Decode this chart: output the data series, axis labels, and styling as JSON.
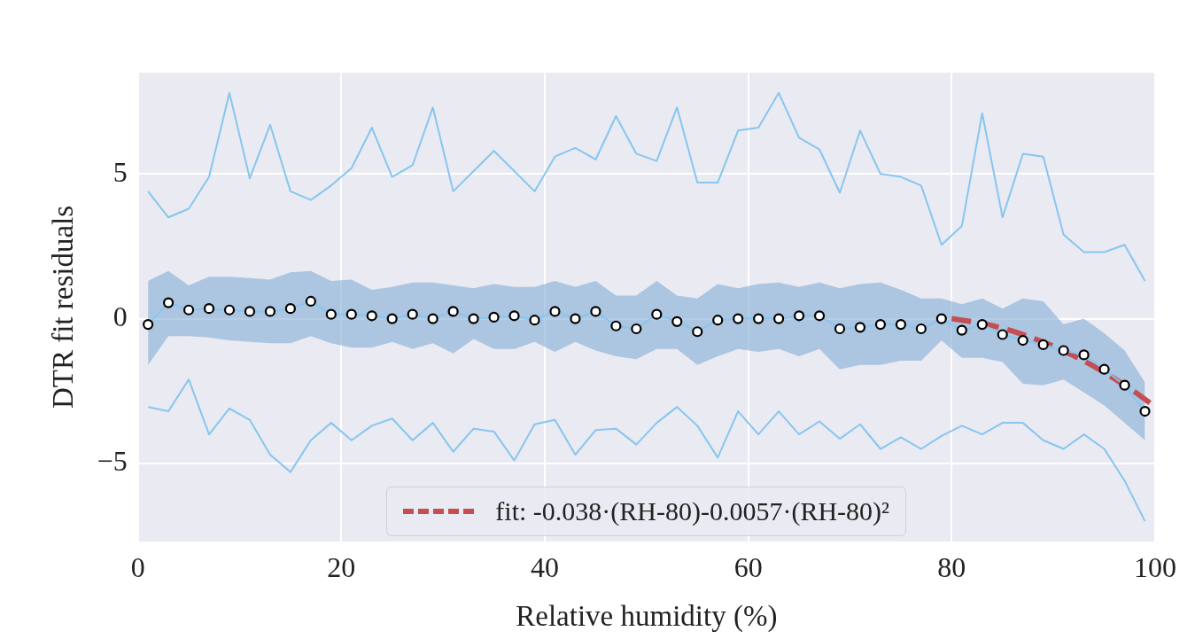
{
  "chart_data": {
    "type": "line",
    "xlabel": "Relative humidity (%)",
    "ylabel": "DTR fit residuals",
    "xlim": [
      0,
      100
    ],
    "xticks": [
      0,
      20,
      40,
      60,
      80,
      100
    ],
    "ylim": [
      -7.7,
      8.5
    ],
    "yticks": [
      {
        "value": -5,
        "label": "−5"
      },
      0,
      5
    ],
    "grid": true,
    "legend": "bottom",
    "x": [
      1,
      3,
      5,
      7,
      9,
      11,
      13,
      15,
      17,
      19,
      21,
      23,
      25,
      27,
      29,
      31,
      33,
      35,
      37,
      39,
      41,
      43,
      45,
      47,
      49,
      51,
      53,
      55,
      57,
      59,
      61,
      63,
      65,
      67,
      69,
      71,
      73,
      75,
      77,
      79,
      81,
      83,
      85,
      87,
      89,
      91,
      93,
      95,
      97,
      99
    ],
    "series": [
      {
        "color": "#87c6ef",
        "values": [
          4.4,
          3.5,
          3.8,
          4.9,
          7.8,
          4.85,
          6.7,
          4.4,
          4.1,
          4.6,
          5.2,
          6.6,
          4.9,
          5.3,
          7.3,
          4.4,
          5.1,
          5.8,
          5.1,
          4.4,
          5.6,
          5.9,
          5.5,
          7.0,
          5.7,
          5.45,
          7.3,
          4.7,
          4.7,
          6.5,
          6.6,
          7.8,
          6.25,
          5.85,
          4.35,
          6.5,
          5.0,
          4.9,
          4.6,
          2.55,
          3.2,
          7.1,
          3.5,
          5.7,
          5.6,
          2.9,
          2.3,
          2.3,
          2.55,
          1.3
        ]
      },
      {
        "color": "#87c6ef",
        "values": [
          -3.05,
          -3.2,
          -2.1,
          -4.0,
          -3.1,
          -3.5,
          -4.7,
          -5.3,
          -4.2,
          -3.6,
          -4.2,
          -3.7,
          -3.45,
          -4.2,
          -3.6,
          -4.6,
          -3.8,
          -3.9,
          -4.9,
          -3.65,
          -3.5,
          -4.7,
          -3.85,
          -3.8,
          -4.35,
          -3.6,
          -3.05,
          -3.7,
          -4.8,
          -3.2,
          -4.0,
          -3.2,
          -4.0,
          -3.55,
          -4.15,
          -3.65,
          -4.5,
          -4.1,
          -4.5,
          -4.05,
          -3.7,
          -4.0,
          -3.6,
          -3.6,
          -4.2,
          -4.5,
          -4.0,
          -4.5,
          -5.6,
          -7.0
        ]
      },
      {
        "color": "#87c6ef",
        "marker": "circle",
        "values": [
          -0.2,
          0.55,
          0.3,
          0.35,
          0.3,
          0.25,
          0.25,
          0.35,
          0.6,
          0.15,
          0.15,
          0.1,
          0.0,
          0.15,
          0.0,
          0.25,
          0.0,
          0.05,
          0.1,
          -0.05,
          0.25,
          0.0,
          0.25,
          -0.25,
          -0.35,
          0.15,
          -0.1,
          -0.45,
          -0.05,
          0.0,
          0.0,
          0.0,
          0.1,
          0.1,
          -0.35,
          -0.3,
          -0.2,
          -0.2,
          -0.35,
          0.0,
          -0.4,
          -0.2,
          -0.55,
          -0.75,
          -0.9,
          -1.1,
          -1.25,
          -1.75,
          -2.3,
          -3.2
        ],
        "upper": [
          1.3,
          1.65,
          1.15,
          1.45,
          1.45,
          1.4,
          1.35,
          1.6,
          1.65,
          1.3,
          1.35,
          1.0,
          1.1,
          1.25,
          1.25,
          1.15,
          1.05,
          1.2,
          1.1,
          1.1,
          1.3,
          1.1,
          1.3,
          0.8,
          0.8,
          1.3,
          0.8,
          0.7,
          1.2,
          1.05,
          1.2,
          1.25,
          1.1,
          1.25,
          1.05,
          1.2,
          1.25,
          1.0,
          0.7,
          0.7,
          0.5,
          0.7,
          0.35,
          0.7,
          0.6,
          -0.2,
          0.0,
          -0.5,
          -1.1,
          -2.2
        ],
        "lower": [
          -1.6,
          -0.6,
          -0.6,
          -0.65,
          -0.75,
          -0.8,
          -0.85,
          -0.85,
          -0.6,
          -0.85,
          -1.0,
          -1.0,
          -0.8,
          -1.05,
          -0.85,
          -1.2,
          -0.7,
          -1.05,
          -1.05,
          -0.8,
          -1.15,
          -0.8,
          -1.1,
          -1.3,
          -1.4,
          -1.05,
          -1.05,
          -1.6,
          -1.3,
          -1.05,
          -1.15,
          -1.05,
          -1.3,
          -1.05,
          -1.75,
          -1.6,
          -1.6,
          -1.45,
          -1.45,
          -0.75,
          -1.35,
          -1.35,
          -1.5,
          -2.25,
          -2.3,
          -2.1,
          -2.55,
          -3.0,
          -3.6,
          -4.2
        ]
      },
      {
        "name": "fit: -0.038·(RH-80)-0.0057·(RH-80)²",
        "color": "#c44e52",
        "type": "line",
        "line_style": "dashed",
        "x": [
          80,
          82,
          84,
          86,
          88,
          90,
          92,
          94,
          96,
          98,
          100
        ],
        "values": [
          0,
          -0.1,
          -0.24,
          -0.43,
          -0.67,
          -0.95,
          -1.28,
          -1.65,
          -2.07,
          -2.53,
          -3.04
        ]
      }
    ]
  }
}
